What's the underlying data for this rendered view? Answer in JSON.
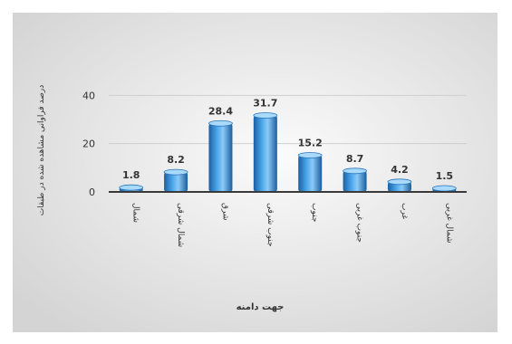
{
  "chart_data": {
    "type": "bar",
    "title": "",
    "ylabel": "درصد فراوانی مشاهده شده در طبقات",
    "xlabel": "جهت دامنه",
    "categories": [
      "شمال",
      "شمال شرقی",
      "شرق",
      "جنوب شرقی",
      "جنوب",
      "جنوب غربی",
      "غرب",
      "شمال غربی"
    ],
    "values": [
      1.8,
      8.2,
      28.4,
      31.7,
      15.2,
      8.7,
      4.2,
      1.5
    ],
    "value_labels": [
      "1.8",
      "8.2",
      "28.4",
      "31.7",
      "15.2",
      "8.7",
      "4.2",
      "1.5"
    ],
    "yticks": [
      "0",
      "20",
      "40"
    ],
    "ylim": [
      0,
      45
    ],
    "grid": true,
    "bar_color": "#2f86cf",
    "background_color": "#e6e6e6"
  }
}
